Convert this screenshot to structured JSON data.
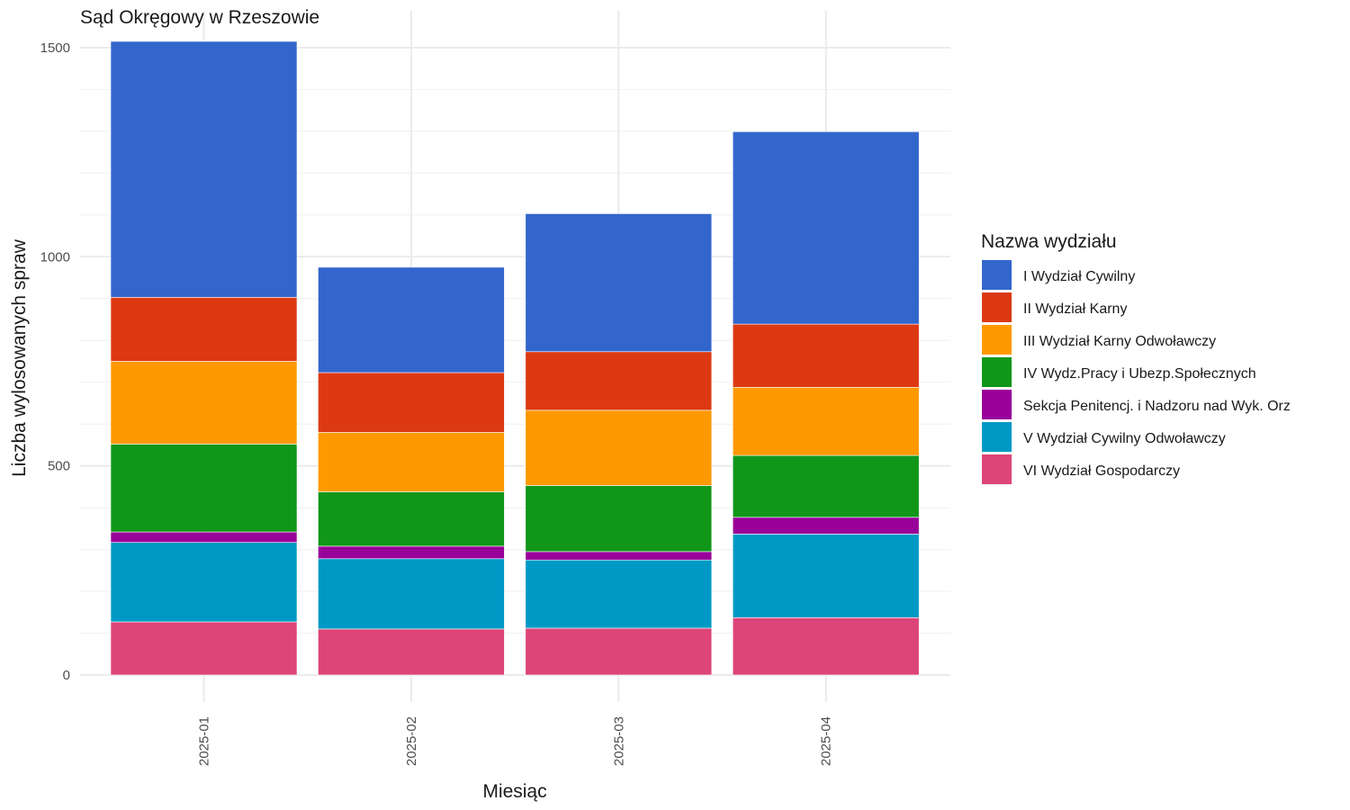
{
  "chart_data": {
    "type": "bar",
    "stacked": true,
    "title": "Sąd Okręgowy w Rzeszowie",
    "xlabel": "Miesiąc",
    "ylabel": "Liczba wylosowanych spraw",
    "categories": [
      "2025-01",
      "2025-02",
      "2025-03",
      "2025-04"
    ],
    "ylim": [
      0,
      1515
    ],
    "yticks": [
      0,
      500,
      1000,
      1500
    ],
    "grid": true,
    "legend": {
      "title": "Nazwa wydziału",
      "position": "right"
    },
    "series": [
      {
        "name": "VI Wydział Gospodarczy",
        "color": "#DD4477",
        "values": [
          127,
          110,
          112,
          137
        ]
      },
      {
        "name": "V Wydział Cywilny Odwoławczy",
        "color": "#0099C6",
        "values": [
          190,
          168,
          163,
          200
        ]
      },
      {
        "name": "Sekcja Penitencj. i Nadzoru nad Wyk. Orz",
        "color": "#990099",
        "values": [
          25,
          30,
          20,
          40
        ]
      },
      {
        "name": "IV Wydz.Pracy i Ubezp.Społecznych",
        "color": "#109618",
        "values": [
          210,
          130,
          158,
          148
        ]
      },
      {
        "name": "III Wydział Karny Odwoławczy",
        "color": "#FF9900",
        "values": [
          198,
          142,
          180,
          163
        ]
      },
      {
        "name": "II Wydział Karny",
        "color": "#DC3912",
        "values": [
          153,
          143,
          140,
          151
        ]
      },
      {
        "name": "I Wydział Cywilny",
        "color": "#3366CC",
        "values": [
          612,
          252,
          330,
          460
        ]
      }
    ],
    "legend_order": [
      "I Wydział Cywilny",
      "II Wydział Karny",
      "III Wydział Karny Odwoławczy",
      "IV Wydz.Pracy i Ubezp.Społecznych",
      "Sekcja Penitencj. i Nadzoru nad Wyk. Orz",
      "V Wydział Cywilny Odwoławczy",
      "VI Wydział Gospodarczy"
    ]
  }
}
